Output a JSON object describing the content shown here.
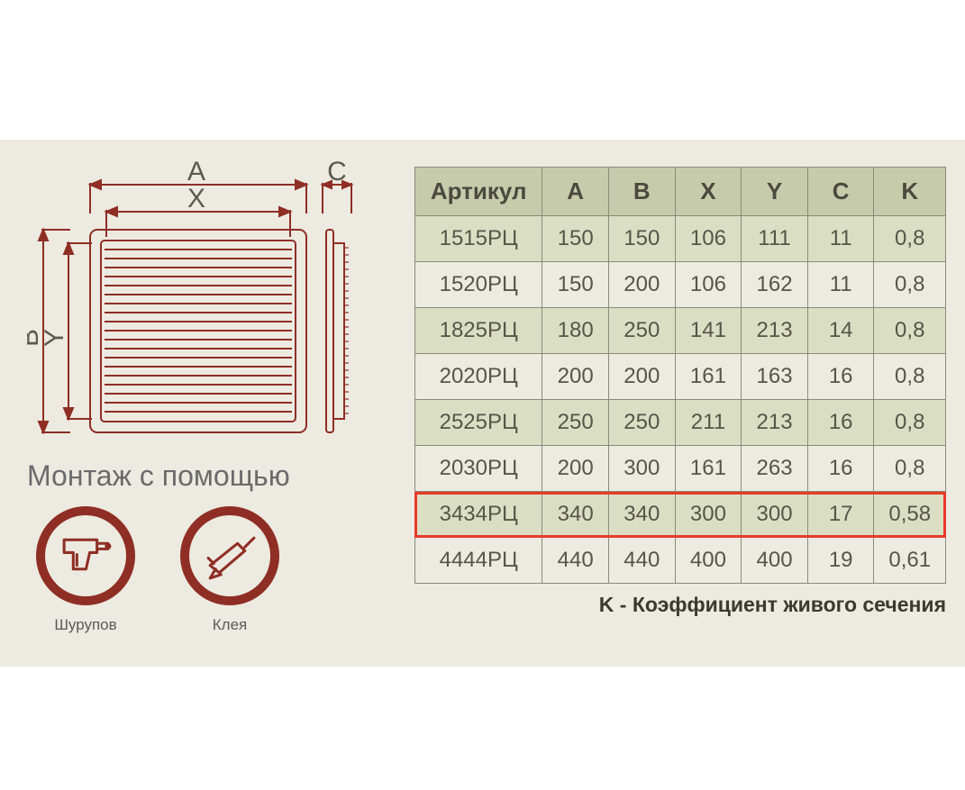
{
  "diagram": {
    "labels": {
      "A": "A",
      "X": "X",
      "C": "C",
      "B": "B",
      "Y": "Y"
    },
    "stroke_color": "#8f2e24",
    "label_color": "#5a5a50",
    "label_fontsize": 30
  },
  "mounting": {
    "title": "Монтаж с помощью",
    "items": [
      {
        "name": "drill",
        "label": "Шурупов"
      },
      {
        "name": "glue",
        "label": "Клея"
      }
    ],
    "circle_border_color": "#8f2e24",
    "icon_color": "#8f2e24"
  },
  "table": {
    "columns": [
      "Артикул",
      "A",
      "B",
      "X",
      "Y",
      "C",
      "K"
    ],
    "rows": [
      [
        "1515РЦ",
        "150",
        "150",
        "106",
        "111",
        "11",
        "0,8"
      ],
      [
        "1520РЦ",
        "150",
        "200",
        "106",
        "162",
        "11",
        "0,8"
      ],
      [
        "1825РЦ",
        "180",
        "250",
        "141",
        "213",
        "14",
        "0,8"
      ],
      [
        "2020РЦ",
        "200",
        "200",
        "161",
        "163",
        "16",
        "0,8"
      ],
      [
        "2525РЦ",
        "250",
        "250",
        "211",
        "213",
        "16",
        "0,8"
      ],
      [
        "2030РЦ",
        "200",
        "300",
        "161",
        "263",
        "16",
        "0,8"
      ],
      [
        "3434РЦ",
        "340",
        "340",
        "300",
        "300",
        "17",
        "0,58"
      ],
      [
        "4444РЦ",
        "440",
        "440",
        "400",
        "400",
        "19",
        "0,61"
      ]
    ],
    "highlight_row_index": 6,
    "highlight_color": "#e83a2a",
    "header_bg": "#c6ccab",
    "row_bg_odd": "#dadfc4",
    "row_bg_even": "#edeae1",
    "border_color": "#8a8a7a",
    "col_widths_pct": [
      24,
      12.5,
      12.5,
      12.5,
      12.5,
      12.5,
      13.5
    ]
  },
  "footnote": "K - Коэффициент живого сечения",
  "canvas": {
    "background": "#ffffff",
    "band_background": "#edeae1"
  }
}
